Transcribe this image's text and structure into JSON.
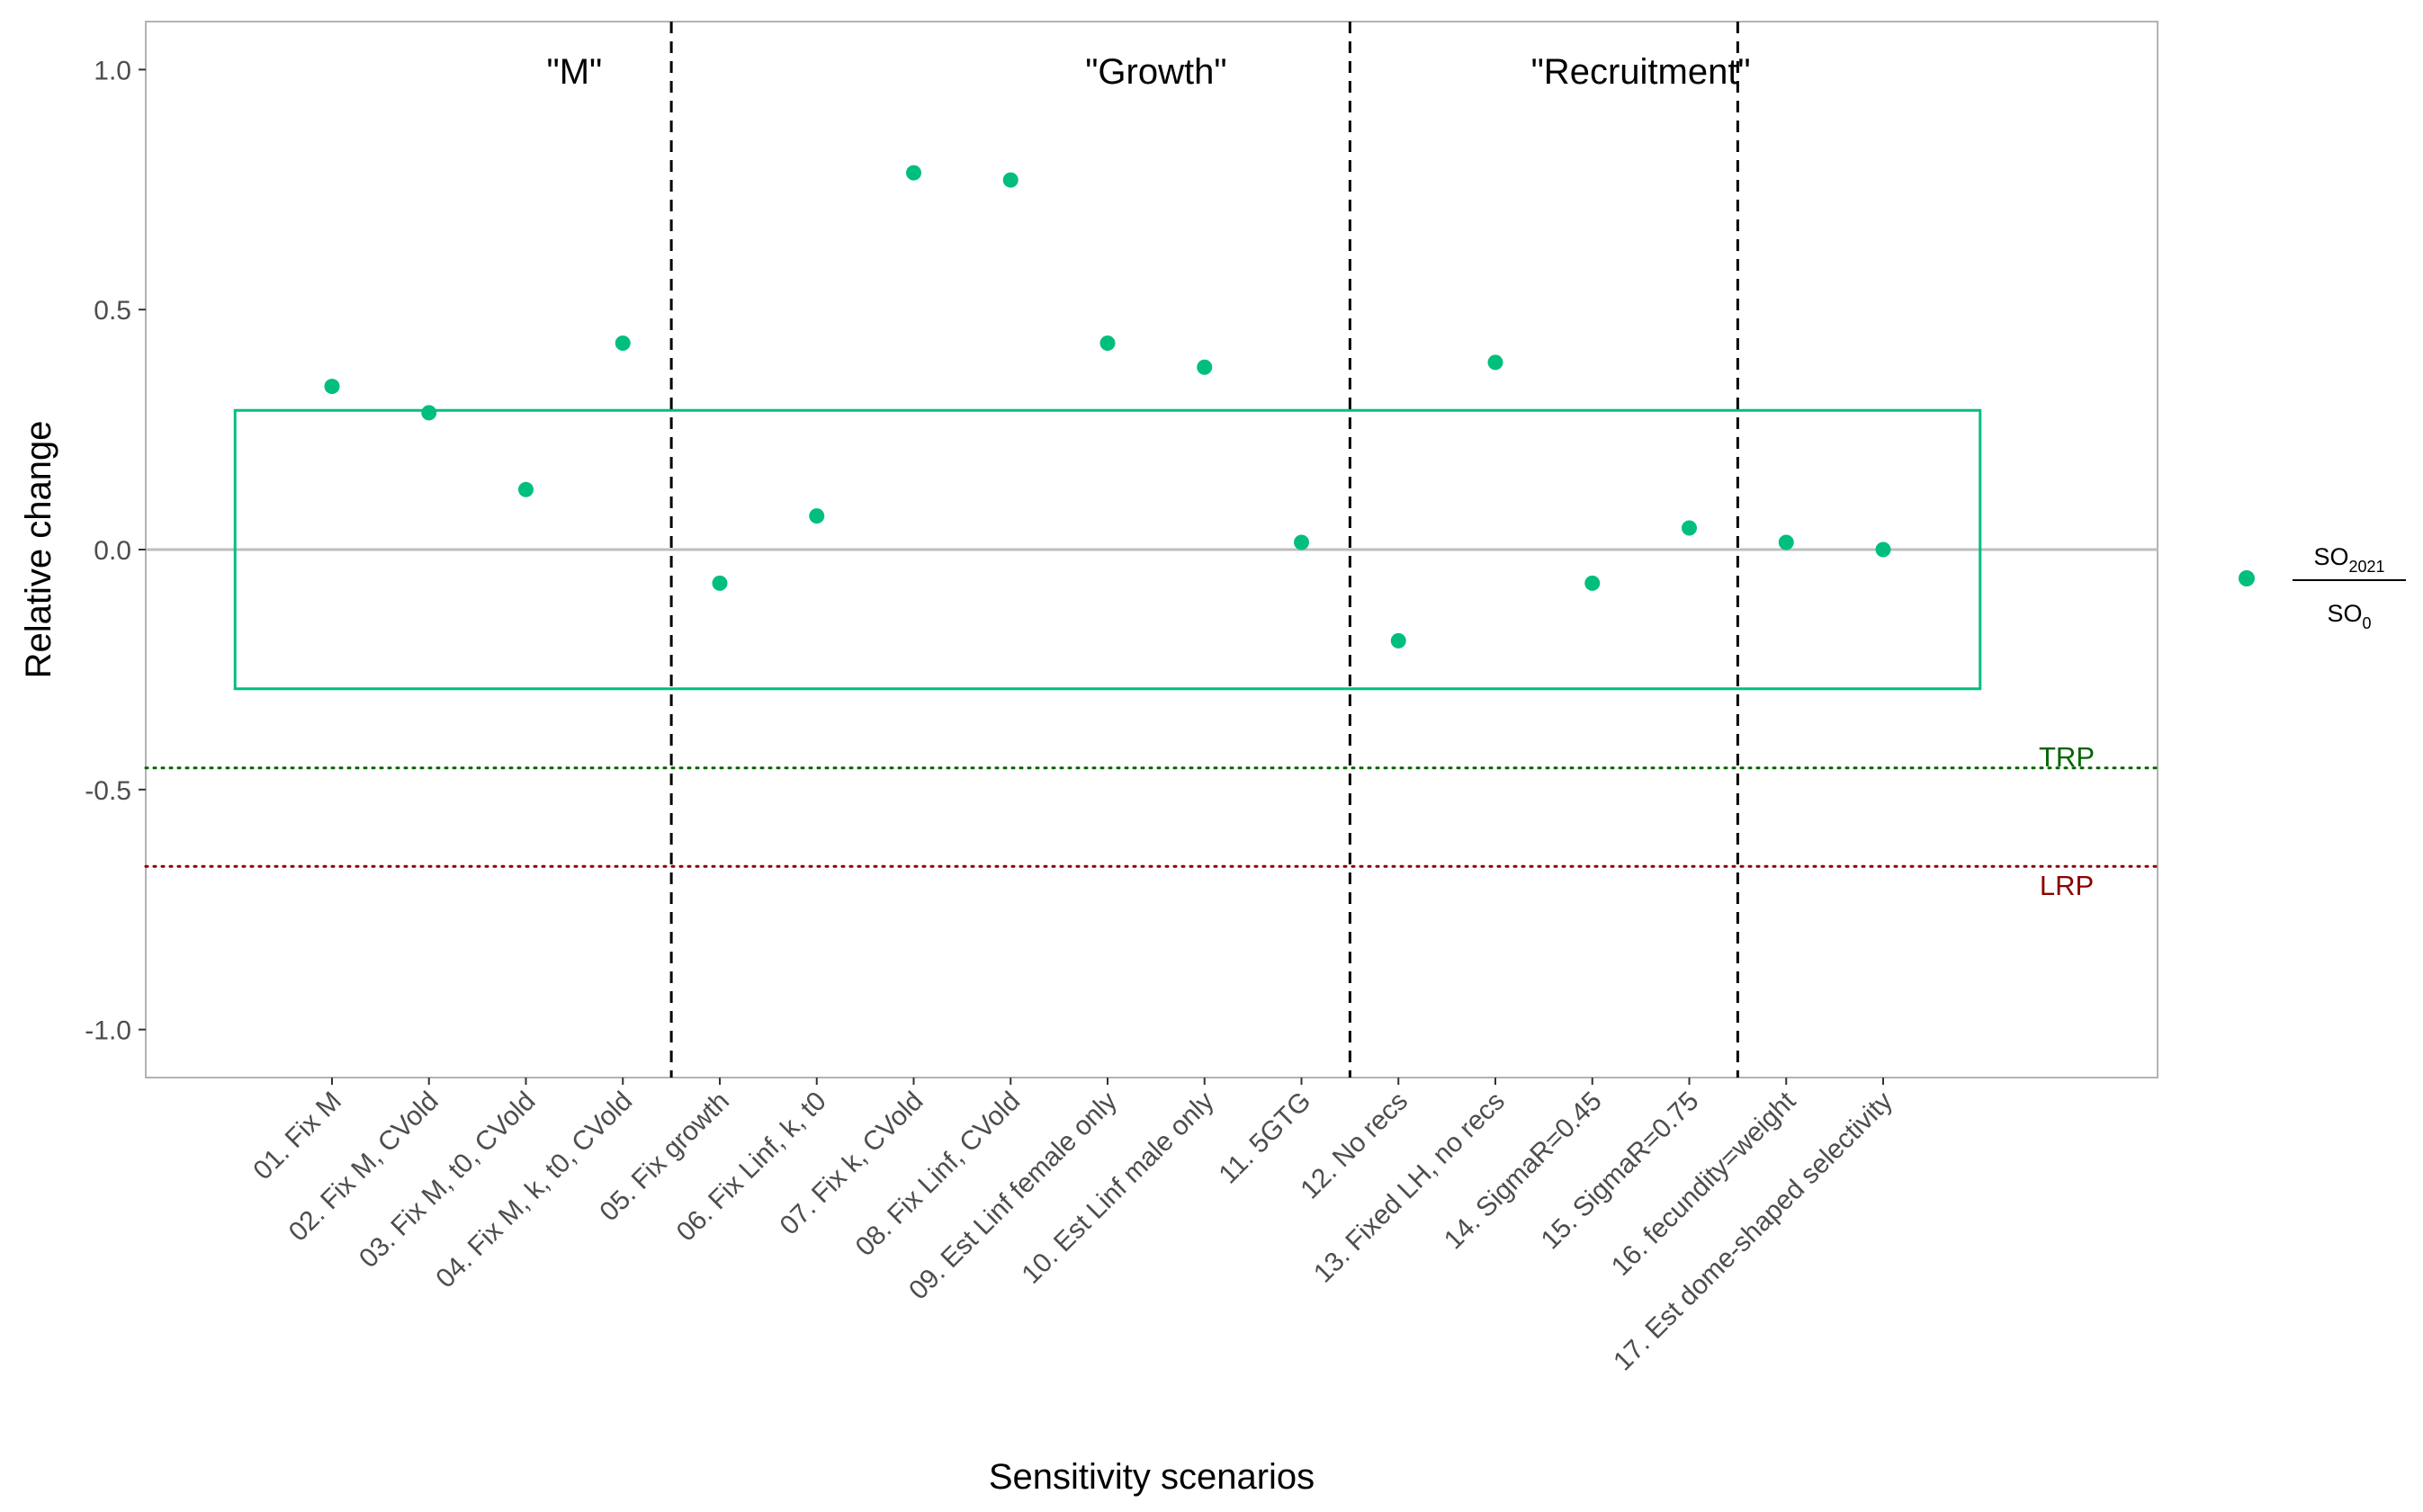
{
  "chart_data": {
    "type": "scatter",
    "xlabel": "Sensitivity scenarios",
    "ylabel": "Relative change",
    "ylim": [
      -1.1,
      1.1
    ],
    "yticks": [
      -1.0,
      -0.5,
      0.0,
      0.5,
      1.0
    ],
    "ytick_labels": [
      "-1.0",
      "-0.5",
      "0.0",
      "0.5",
      "1.0"
    ],
    "categories": [
      "01. Fix M",
      "02. Fix M, CVold",
      "03. Fix M, t0, CVold",
      "04. Fix M, k, t0, CVold",
      "05. Fix growth",
      "06. Fix Linf, k, t0",
      "07. Fix k, CVold",
      "08. Fix Linf, CVold",
      "09. Est Linf female only",
      "10. Est Linf male only",
      "11. 5GTG",
      "12. No recs",
      "13. Fixed LH, no recs",
      "14. SigmaR=0.45",
      "15. SigmaR=0.75",
      "16. fecundity=weight",
      "17. Est dome-shaped selectivity"
    ],
    "series": [
      {
        "name": "SO2021/SO0",
        "color": "#00BF7D",
        "values": [
          0.34,
          0.285,
          0.125,
          0.43,
          -0.07,
          0.07,
          0.785,
          0.77,
          0.43,
          0.38,
          0.015,
          -0.19,
          0.39,
          -0.07,
          0.045,
          0.015,
          0.0
        ]
      }
    ],
    "group_labels": [
      {
        "text": "\"M\"",
        "center_index": 2.5
      },
      {
        "text": "\"Growth\"",
        "center_index": 8.5
      },
      {
        "text": "\"Recruitment\"",
        "center_index": 13.5
      }
    ],
    "group_dividers_after_index": [
      3,
      10,
      14
    ],
    "reference_box": {
      "y_min": -0.29,
      "y_max": 0.29,
      "color": "#00BF7D"
    },
    "zero_line": {
      "y": 0.0,
      "color": "#bebebe"
    },
    "reference_lines": [
      {
        "label": "TRP",
        "y": -0.455,
        "color": "#006400",
        "style": "dotted"
      },
      {
        "label": "LRP",
        "y": -0.66,
        "color": "#8B0000",
        "style": "dotted"
      }
    ],
    "legend": {
      "position": "right",
      "numerator": "SO",
      "numerator_sub": "2021",
      "denominator": "SO",
      "denominator_sub": "0"
    },
    "grid": false
  }
}
